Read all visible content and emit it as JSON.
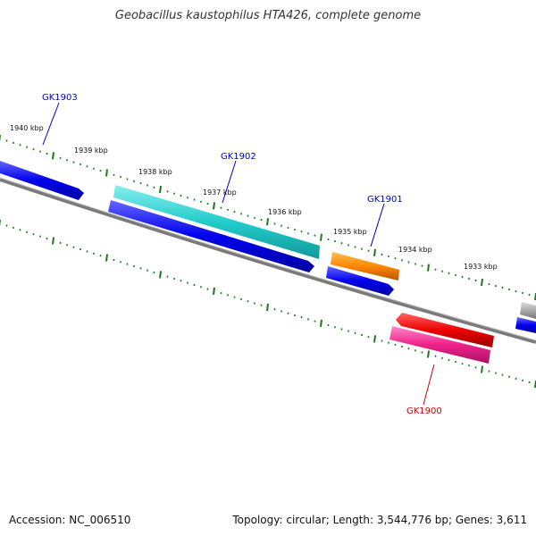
{
  "title": "Geobacillus kaustophilus HTA426, complete genome",
  "footer": {
    "accession": "Accession: NC_006510",
    "topology": "Topology: circular; Length: 3,544,776 bp; Genes: 3,611"
  },
  "scale_labels": [
    "1940 kbp",
    "1939 kbp",
    "1938 kbp",
    "1937 kbp",
    "1936 kbp",
    "1935 kbp",
    "1934 kbp",
    "1933 kbp"
  ],
  "gene_labels": [
    {
      "name": "GK1903",
      "color": "#0000cc"
    },
    {
      "name": "GK1902",
      "color": "#0000cc"
    },
    {
      "name": "GK1901",
      "color": "#0000cc"
    },
    {
      "name": "GK1900",
      "color": "#cc0000"
    }
  ],
  "colors": {
    "backbone": "#7a7a7a",
    "ticks": "#1a7a1a",
    "cds_blue": "#0000ee",
    "cyan": "#22cccc",
    "orange": "#ff8800",
    "red": "#ee0000",
    "pink": "#ee2288",
    "gray": "#aaaaaa"
  }
}
